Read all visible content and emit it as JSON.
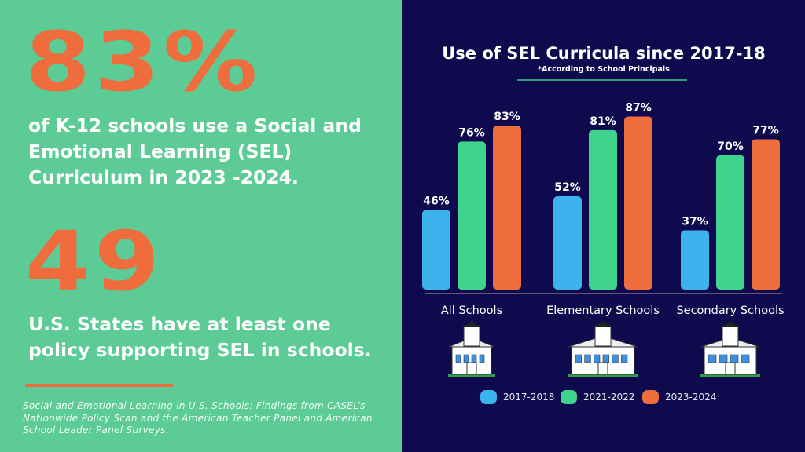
{
  "left": {
    "stat1_value": "83%",
    "stat1_text": "of K-12 schools use a Social and Emotional Learning (SEL) Curriculum in 2023 -2024.",
    "stat2_value": "49",
    "stat2_text": "U.S. States have at least one policy supporting SEL in schools.",
    "citation": "Social and Emotional Learning in U.S. Schools: Findings from CASEL’s Nationwide Policy Scan and the American Teacher Panel and American School Leader Panel Surveys."
  },
  "colors": {
    "left_bg": "#5ccb96",
    "right_bg": "#0f0a4e",
    "accent": "#ef6c3c"
  },
  "chart_data": {
    "type": "bar",
    "title": "Use of SEL Curricula since 2017-18",
    "subtitle": "*According to School Principals",
    "categories": [
      "All Schools",
      "Elementary Schools",
      "Secondary Schools"
    ],
    "series": [
      {
        "name": "2017-2018",
        "color": "#3db3ee",
        "values": [
          46,
          52,
          37
        ],
        "labels": [
          "46%",
          "52%",
          "37%"
        ]
      },
      {
        "name": "2021-2022",
        "color": "#3fd48e",
        "values": [
          76,
          81,
          70
        ],
        "labels": [
          "76%",
          "81%",
          "70%"
        ]
      },
      {
        "name": "2023-2024",
        "color": "#ef6c3c",
        "values": [
          83,
          87,
          77
        ],
        "labels": [
          "83%",
          "87%",
          "77%"
        ]
      }
    ],
    "legend": "bottom",
    "grid": false,
    "icons": [
      "school-building-icon",
      "school-building-icon",
      "school-building-icon"
    ]
  }
}
